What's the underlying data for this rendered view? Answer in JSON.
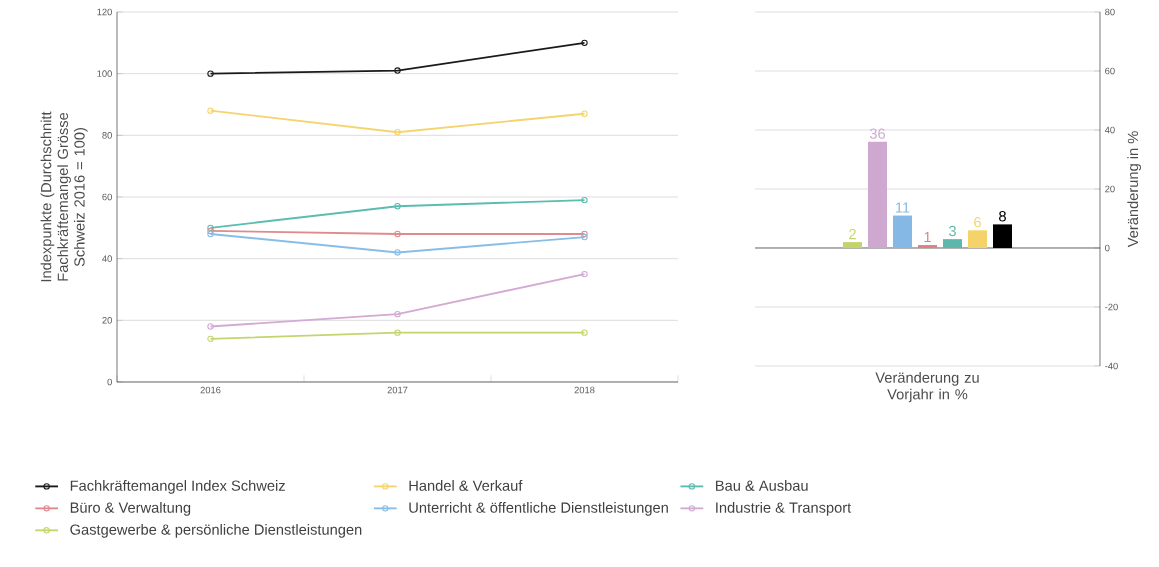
{
  "chart_data": [
    {
      "type": "line",
      "categories": [
        "2016",
        "2017",
        "2018"
      ],
      "ylabel": "Indexpunkte (Durchschnitt Fachkräftemangel Grösse Schweiz 2016 = 100)",
      "ylim": [
        0,
        120
      ],
      "yticks": [
        0,
        20,
        40,
        60,
        80,
        100,
        120
      ],
      "grid": "y",
      "marker": "circle",
      "legend": "bottom",
      "series": [
        {
          "name": "Fachkräftemangel Index Schweiz",
          "color": "#1a1a1a",
          "values": [
            100,
            101,
            110
          ]
        },
        {
          "name": "Handel & Verkauf",
          "color": "#f5d46e",
          "values": [
            88,
            81,
            87
          ]
        },
        {
          "name": "Bau & Ausbau",
          "color": "#5bbcb0",
          "values": [
            50,
            57,
            59
          ]
        },
        {
          "name": "Büro & Verwaltung",
          "color": "#e08a8e",
          "values": [
            49,
            48,
            48
          ]
        },
        {
          "name": "Unterricht & öffentliche Dienstleistungen",
          "color": "#88bde8",
          "values": [
            48,
            42,
            47
          ]
        },
        {
          "name": "Industrie & Transport",
          "color": "#d4a9d4",
          "values": [
            18,
            22,
            35
          ]
        },
        {
          "name": "Gastgewerbe & persönliche Dienstleistungen",
          "color": "#c2d66e",
          "values": [
            14,
            16,
            16
          ]
        }
      ]
    },
    {
      "type": "bar",
      "categories": [
        null
      ],
      "series": [
        {
          "color": "#c5d46a",
          "values": [
            2
          ]
        },
        {
          "color": "#cfa8cf",
          "values": [
            36
          ]
        },
        {
          "color": "#85b8e4",
          "values": [
            11
          ]
        },
        {
          "color": "#e08080",
          "values": [
            1
          ]
        },
        {
          "color": "#5db8ab",
          "values": [
            3
          ]
        },
        {
          "color": "#f5d36b",
          "values": [
            6
          ]
        },
        {
          "color": "#000000",
          "values": [
            8
          ]
        }
      ],
      "xlabel": "Veränderung zu Vorjahr in %",
      "ylabel": "Veränderung in %",
      "ylim": [
        -40,
        80
      ],
      "yticks": [
        -40,
        -20,
        0,
        20,
        40,
        60,
        80
      ],
      "grid": "y",
      "data_labels": true
    }
  ]
}
